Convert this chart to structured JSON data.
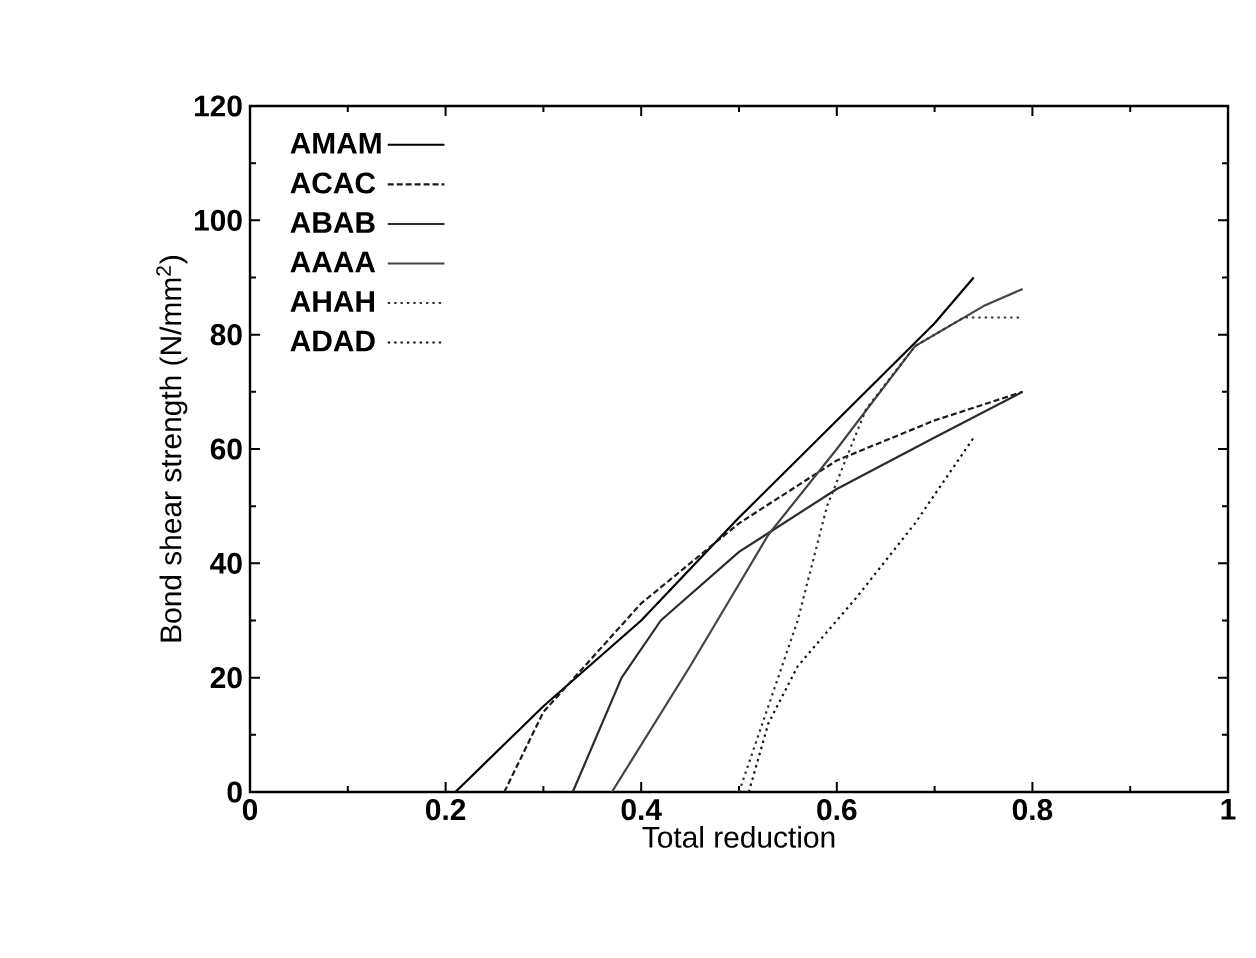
{
  "chart_data": {
    "type": "line",
    "xlabel": "Total reduction",
    "ylabel": "Bond shear strength (N/mm$^{2}$)",
    "xlim": [
      0,
      1
    ],
    "ylim": [
      0,
      120
    ],
    "xticks": [
      0,
      0.2,
      0.4,
      0.6,
      0.8,
      1
    ],
    "yticks": [
      0,
      20,
      40,
      60,
      80,
      100,
      120
    ],
    "grid": false,
    "legend": "top left",
    "marker": "none",
    "series": [
      {
        "name": "AMAM",
        "color": "#000000",
        "line_style": "solid",
        "x": [
          0.21,
          0.3,
          0.4,
          0.5,
          0.6,
          0.7,
          0.74
        ],
        "values": [
          0,
          15,
          30,
          48,
          65,
          82,
          90
        ]
      },
      {
        "name": "ACAC",
        "color": "#1a1a1a",
        "line_style": "dashed",
        "x": [
          0.26,
          0.3,
          0.4,
          0.5,
          0.6,
          0.7,
          0.79
        ],
        "values": [
          0,
          14,
          33,
          47,
          58,
          65,
          70
        ]
      },
      {
        "name": "ABAB",
        "color": "#2b2b2b",
        "line_style": "solid",
        "x": [
          0.33,
          0.38,
          0.42,
          0.5,
          0.6,
          0.7,
          0.79
        ],
        "values": [
          0,
          20,
          30,
          42,
          53,
          62,
          70
        ]
      },
      {
        "name": "AAAA",
        "color": "#444444",
        "line_style": "solid",
        "x": [
          0.37,
          0.45,
          0.53,
          0.6,
          0.68,
          0.75,
          0.79
        ],
        "values": [
          0,
          22,
          45,
          60,
          78,
          85,
          88
        ]
      },
      {
        "name": "AHAH",
        "color": "#333333",
        "line_style": "dotted",
        "x": [
          0.5,
          0.53,
          0.56,
          0.59,
          0.63,
          0.68,
          0.73,
          0.79
        ],
        "values": [
          0,
          15,
          30,
          50,
          67,
          78,
          83,
          83
        ]
      },
      {
        "name": "ADAD",
        "color": "#111111",
        "line_style": "dotted",
        "x": [
          0.51,
          0.53,
          0.56,
          0.62,
          0.68,
          0.74
        ],
        "values": [
          0,
          12,
          22,
          34,
          47,
          62
        ]
      }
    ]
  }
}
